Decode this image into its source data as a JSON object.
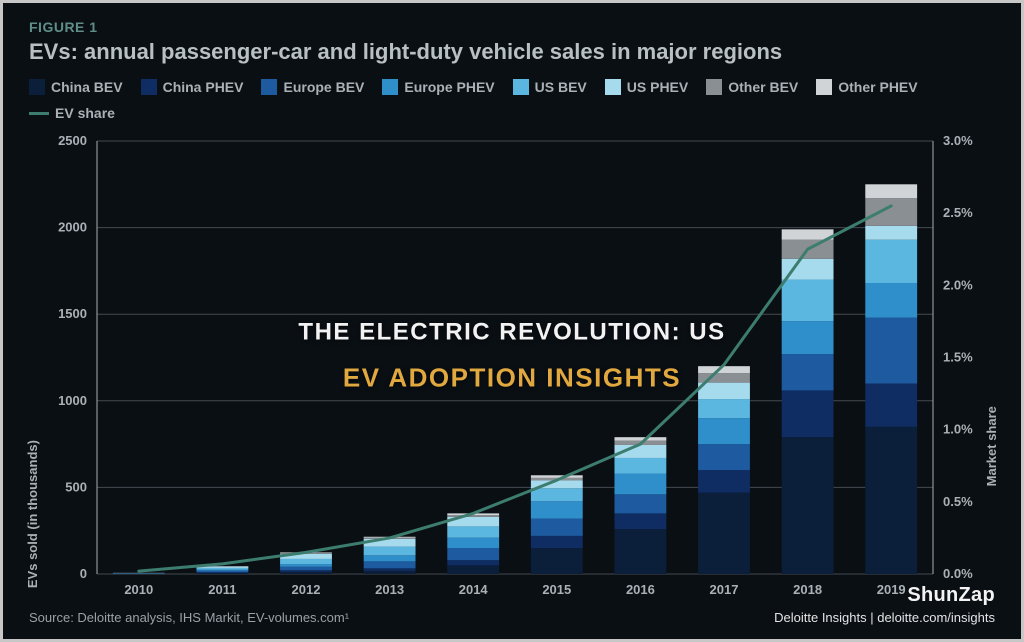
{
  "figure_label": "FIGURE 1",
  "title": "EVs: annual passenger-car and light-duty vehicle sales in major regions",
  "y_label_left": "EVs sold (in thousands)",
  "y_label_right": "Market share",
  "source": "Source: Deloitte analysis, IHS Markit, EV-volumes.com¹",
  "credit_right": "Deloitte Insights | deloitte.com/insights",
  "brand": "ShunZap",
  "overlay_line1": "THE ELECTRIC REVOLUTION: US",
  "overlay_line2": "EV ADOPTION INSIGHTS",
  "legend": [
    {
      "label": "China BEV",
      "color": "#0b1f3a",
      "kind": "box"
    },
    {
      "label": "China PHEV",
      "color": "#102d63",
      "kind": "box"
    },
    {
      "label": "Europe BEV",
      "color": "#1d5a9f",
      "kind": "box"
    },
    {
      "label": "Europe PHEV",
      "color": "#2f8fcb",
      "kind": "box"
    },
    {
      "label": "US BEV",
      "color": "#5cb7e0",
      "kind": "box"
    },
    {
      "label": "US PHEV",
      "color": "#a6dbee",
      "kind": "box"
    },
    {
      "label": "Other BEV",
      "color": "#8a8f93",
      "kind": "box"
    },
    {
      "label": "Other PHEV",
      "color": "#d0d4d7",
      "kind": "box"
    },
    {
      "label": "EV share",
      "color": "#3d7d6f",
      "kind": "line"
    }
  ],
  "chart": {
    "type": "stacked-bar-with-line",
    "background": "#0a0f14",
    "grid_color": "#444a4f",
    "axis_color": "#a7aeb3",
    "tick_fontsize": 13,
    "categories": [
      "2010",
      "2011",
      "2012",
      "2013",
      "2014",
      "2015",
      "2016",
      "2017",
      "2018",
      "2019"
    ],
    "y_left": {
      "min": 0,
      "max": 2500,
      "step": 500
    },
    "y_right": {
      "min": 0.0,
      "max": 3.0,
      "step": 0.5,
      "suffix": "%"
    },
    "bar_width": 0.62,
    "series_order": [
      "China BEV",
      "China PHEV",
      "Europe BEV",
      "Europe PHEV",
      "US BEV",
      "US PHEV",
      "Other BEV",
      "Other PHEV"
    ],
    "series_colors": {
      "China BEV": "#0b1f3a",
      "China PHEV": "#102d63",
      "Europe BEV": "#1d5a9f",
      "Europe PHEV": "#2f8fcb",
      "US BEV": "#5cb7e0",
      "US PHEV": "#a6dbee",
      "Other BEV": "#8a8f93",
      "Other PHEV": "#d0d4d7"
    },
    "bars": {
      "China BEV": [
        2,
        6,
        12,
        18,
        50,
        150,
        260,
        470,
        790,
        850
      ],
      "China PHEV": [
        0,
        4,
        10,
        15,
        30,
        70,
        90,
        130,
        270,
        250
      ],
      "Europe BEV": [
        2,
        10,
        20,
        40,
        70,
        100,
        110,
        150,
        210,
        380
      ],
      "Europe PHEV": [
        0,
        5,
        15,
        35,
        60,
        100,
        120,
        150,
        190,
        200
      ],
      "US BEV": [
        2,
        10,
        30,
        50,
        65,
        75,
        90,
        110,
        240,
        250
      ],
      "US PHEV": [
        0,
        8,
        30,
        45,
        55,
        45,
        75,
        95,
        120,
        80
      ],
      "Other BEV": [
        1,
        2,
        5,
        7,
        10,
        15,
        25,
        55,
        110,
        160
      ],
      "Other PHEV": [
        0,
        1,
        3,
        5,
        10,
        15,
        20,
        40,
        60,
        80
      ]
    },
    "line": {
      "label": "EV share",
      "color": "#3d7d6f",
      "width": 3,
      "values_pct": [
        0.02,
        0.07,
        0.15,
        0.25,
        0.42,
        0.65,
        0.9,
        1.45,
        2.25,
        2.55
      ]
    }
  }
}
